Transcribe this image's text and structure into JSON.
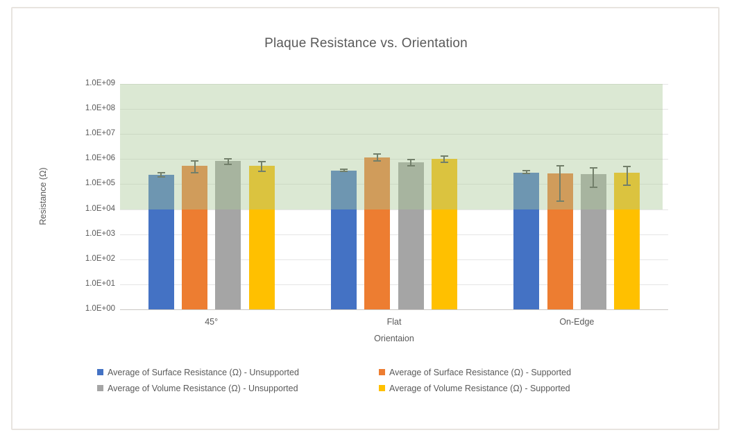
{
  "chart_data": {
    "type": "bar",
    "title": "Plaque Resistance vs. Orientation",
    "xlabel": "Orientaion",
    "ylabel": "Resistance (Ω)",
    "y_scale": "log",
    "ylim": [
      1,
      1000000000
    ],
    "y_tick_labels": [
      "1.0E+09",
      "1.0E+08",
      "1.0E+07",
      "1.0E+06",
      "1.0E+05",
      "1.0E+04",
      "1.0E+03",
      "1.0E+02",
      "1.0E+01",
      "1.0E+00"
    ],
    "categories": [
      "45°",
      "Flat",
      "On-Edge"
    ],
    "series": [
      {
        "name": "Average of Surface Resistance (Ω) - Unsupported",
        "color": "#4472C4",
        "values": [
          240000,
          350000,
          290000
        ],
        "err_high": [
          290000,
          390000,
          340000
        ],
        "err_low": [
          200000,
          320000,
          260000
        ]
      },
      {
        "name": "Average of Surface Resistance (Ω) - Supported",
        "color": "#ED7D31",
        "values": [
          540000,
          1180000,
          260000
        ],
        "err_high": [
          850000,
          1600000,
          540000
        ],
        "err_low": [
          290000,
          850000,
          21000
        ]
      },
      {
        "name": "Average of Volume Resistance (Ω) - Unsupported",
        "color": "#A5A5A5",
        "values": [
          840000,
          760000,
          250000
        ],
        "err_high": [
          1050000,
          970000,
          450000
        ],
        "err_low": [
          630000,
          550000,
          75000
        ]
      },
      {
        "name": "Average of Volume Resistance (Ω) - Supported",
        "color": "#FFC000",
        "values": [
          540000,
          1000000,
          290000
        ],
        "err_high": [
          800000,
          1350000,
          520000
        ],
        "err_low": [
          330000,
          740000,
          90000
        ]
      }
    ],
    "highlight_band": {
      "from": 10000,
      "to": 1000000000,
      "fill": "#DDE9D5"
    },
    "grid": true,
    "legend_position": "bottom",
    "text_color": "#595959"
  }
}
